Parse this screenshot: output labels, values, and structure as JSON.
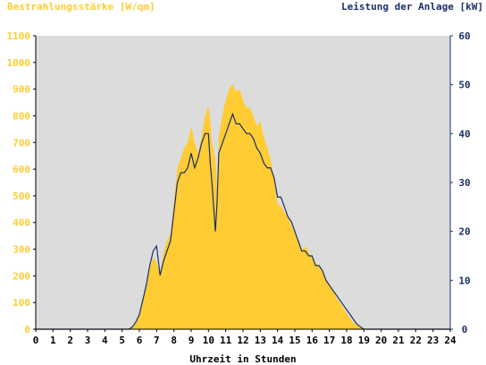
{
  "chart_data": {
    "type": "area",
    "title_left": "Bestrahlungsstärke [W/qm]",
    "title_right": "Leistung der Anlage [kW]",
    "xlabel": "Uhrzeit in Stunden",
    "xlim": [
      0,
      24
    ],
    "x_ticks": [
      "0",
      "1",
      "2",
      "3",
      "4",
      "5",
      "6",
      "7",
      "8",
      "9",
      "10",
      "11",
      "12",
      "13",
      "14",
      "15",
      "16",
      "17",
      "18",
      "19",
      "20",
      "21",
      "22",
      "23",
      "24"
    ],
    "y_left": {
      "lim": [
        0,
        1100
      ],
      "ticks": [
        "0",
        "100",
        "200",
        "300",
        "400",
        "500",
        "600",
        "700",
        "800",
        "900",
        "1000",
        "1100"
      ]
    },
    "y_right": {
      "lim": [
        0,
        60
      ],
      "ticks": [
        "0",
        "10",
        "20",
        "30",
        "40",
        "50",
        "60"
      ]
    },
    "colors": {
      "plot_bg": "#dcdcdc",
      "irradiance": "#ffcc33",
      "power": "#1a2f6b",
      "axis": "#000000"
    },
    "series": [
      {
        "name": "Bestrahlungsstärke [W/qm]",
        "axis": "left",
        "x": [
          0,
          5.4,
          5.6,
          5.8,
          6.0,
          6.2,
          6.4,
          6.6,
          6.8,
          7.0,
          7.2,
          7.4,
          7.6,
          7.8,
          8.0,
          8.2,
          8.4,
          8.6,
          8.8,
          9.0,
          9.2,
          9.4,
          9.6,
          9.8,
          10.0,
          10.1,
          10.2,
          10.4,
          10.5,
          10.6,
          10.8,
          11.0,
          11.2,
          11.4,
          11.6,
          11.8,
          12.0,
          12.2,
          12.4,
          12.6,
          12.8,
          13.0,
          13.2,
          13.4,
          13.6,
          13.8,
          14.0,
          14.2,
          14.4,
          14.6,
          14.8,
          15.0,
          15.2,
          15.4,
          15.6,
          15.8,
          16.0,
          16.2,
          16.4,
          16.6,
          16.8,
          17.0,
          17.2,
          17.4,
          17.6,
          17.8,
          18.0,
          18.2,
          18.4,
          18.6,
          18.8,
          19.0,
          19.2,
          24
        ],
        "values": [
          0,
          0,
          10,
          30,
          60,
          120,
          170,
          230,
          270,
          250,
          210,
          290,
          330,
          360,
          480,
          600,
          640,
          680,
          700,
          760,
          700,
          660,
          720,
          800,
          840,
          780,
          700,
          640,
          530,
          720,
          800,
          860,
          900,
          920,
          890,
          900,
          860,
          830,
          830,
          800,
          760,
          780,
          720,
          680,
          640,
          560,
          470,
          460,
          440,
          420,
          390,
          360,
          330,
          300,
          310,
          290,
          270,
          250,
          240,
          220,
          190,
          170,
          150,
          120,
          100,
          80,
          60,
          40,
          25,
          15,
          8,
          3,
          0,
          0
        ]
      },
      {
        "name": "Leistung der Anlage [kW]",
        "axis": "right",
        "x": [
          0,
          5.4,
          5.6,
          5.8,
          6.0,
          6.2,
          6.4,
          6.6,
          6.8,
          7.0,
          7.2,
          7.4,
          7.6,
          7.8,
          8.0,
          8.2,
          8.4,
          8.6,
          8.8,
          9.0,
          9.2,
          9.4,
          9.6,
          9.8,
          10.0,
          10.1,
          10.2,
          10.4,
          10.5,
          10.6,
          10.8,
          11.0,
          11.2,
          11.4,
          11.6,
          11.8,
          12.0,
          12.2,
          12.4,
          12.6,
          12.8,
          13.0,
          13.2,
          13.4,
          13.6,
          13.8,
          14.0,
          14.2,
          14.4,
          14.6,
          14.8,
          15.0,
          15.2,
          15.4,
          15.6,
          15.8,
          16.0,
          16.2,
          16.4,
          16.6,
          16.8,
          17.0,
          17.2,
          17.4,
          17.6,
          17.8,
          18.0,
          18.2,
          18.4,
          18.6,
          18.8,
          19.0,
          19.2,
          24
        ],
        "values": [
          0,
          0,
          0.5,
          1.5,
          3,
          6,
          9,
          13,
          16,
          17,
          11,
          14,
          16,
          18,
          24,
          30,
          32,
          32,
          33,
          36,
          33,
          35,
          38,
          40,
          40,
          34,
          30,
          20,
          26,
          36,
          38,
          40,
          42,
          44,
          42,
          42,
          41,
          40,
          40,
          39,
          37,
          36,
          34,
          33,
          33,
          31,
          27,
          27,
          25,
          23,
          22,
          20,
          18,
          16,
          16,
          15,
          15,
          13,
          13,
          12,
          10,
          9,
          8,
          7,
          6,
          5,
          4,
          3,
          2,
          1,
          0.5,
          0,
          0,
          0
        ]
      }
    ]
  }
}
